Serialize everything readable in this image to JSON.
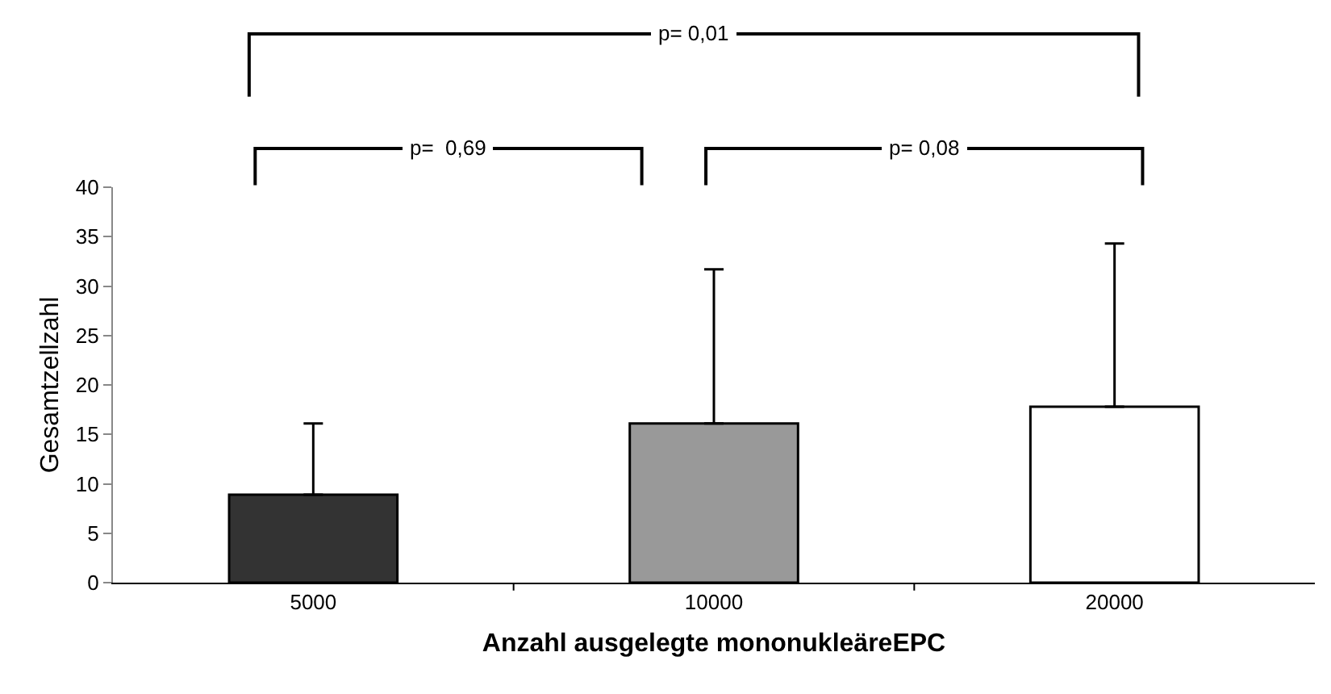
{
  "chart_data": {
    "type": "bar",
    "xlabel": "Anzahl ausgelegte mononukleäreEPC",
    "ylabel": "Gesamtzellzahl",
    "categories": [
      "5000",
      "10000",
      "20000"
    ],
    "values": [
      8.9,
      16.1,
      17.8
    ],
    "colors": [
      "#333333",
      "#999999",
      "#ffffff"
    ],
    "errors": [
      [
        8.9,
        16.1
      ],
      [
        16.1,
        31.7
      ],
      [
        17.8,
        34.3
      ]
    ],
    "ylim": [
      0,
      40
    ],
    "yticks": [
      0,
      5,
      10,
      15,
      20,
      25,
      30,
      35,
      40
    ],
    "legend": false,
    "annotations": [
      "p= 0,01",
      "p=  0,69",
      "p= 0,08"
    ]
  }
}
